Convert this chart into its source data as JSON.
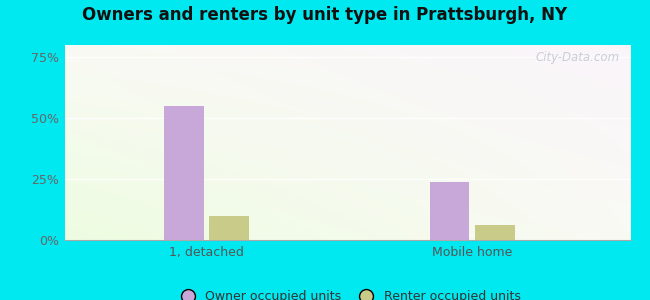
{
  "title": "Owners and renters by unit type in Prattsburgh, NY",
  "categories": [
    "1, detached",
    "Mobile home"
  ],
  "owner_values": [
    55,
    24
  ],
  "renter_values": [
    10,
    6
  ],
  "owner_color": "#c8a8d8",
  "renter_color": "#c8cc88",
  "yticks": [
    0,
    25,
    50,
    75
  ],
  "ytick_labels": [
    "0%",
    "25%",
    "50%",
    "75%"
  ],
  "ylim": [
    0,
    80
  ],
  "bar_width": 0.07,
  "group_centers": [
    0.25,
    0.72
  ],
  "bar_gap": 0.005,
  "legend_owner": "Owner occupied units",
  "legend_renter": "Renter occupied units",
  "bg_outer": "#00e8f0",
  "watermark": "City-Data.com"
}
